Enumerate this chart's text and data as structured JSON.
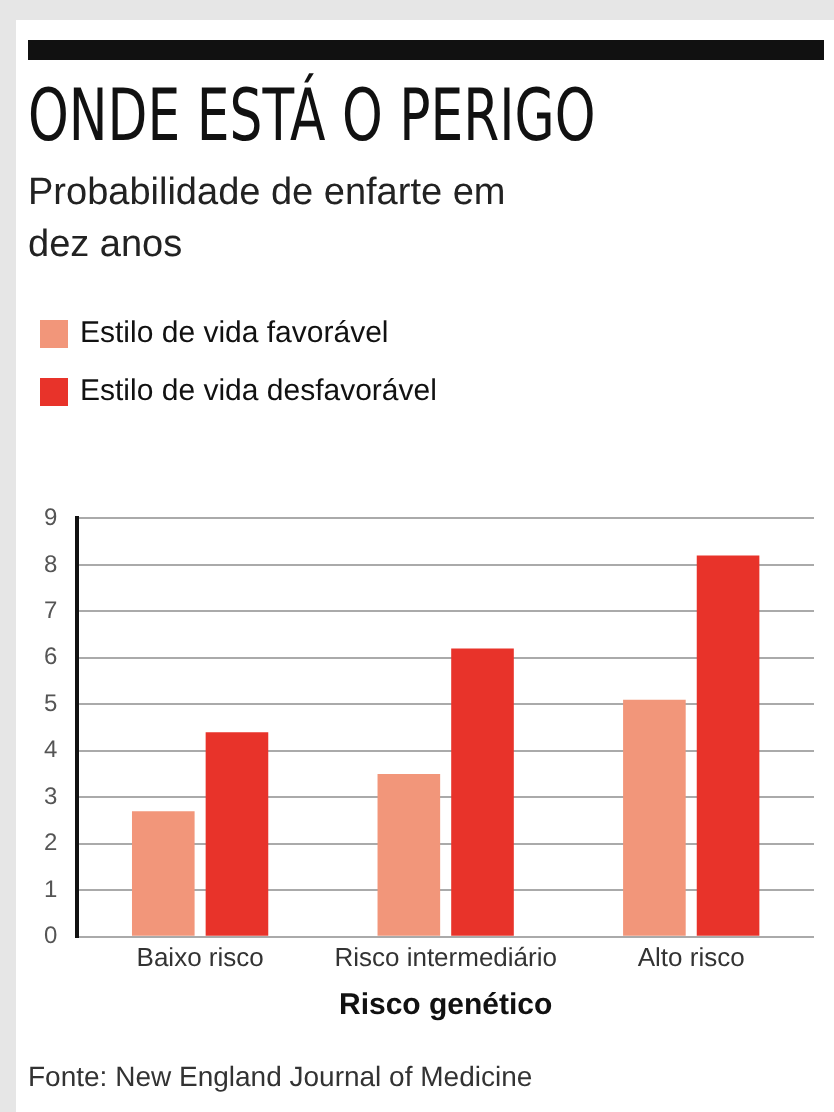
{
  "chart_data": {
    "type": "bar",
    "title": "ONDE ESTÁ O PERIGO",
    "subtitle": "Probabilidade de enfarte em dez anos",
    "xlabel": "Risco genético",
    "categories": [
      "Baixo risco",
      "Risco intermediário",
      "Alto risco"
    ],
    "series": [
      {
        "name": "Estilo de vida favorável",
        "color": "#f2967a",
        "values": [
          2.7,
          3.5,
          5.1
        ]
      },
      {
        "name": "Estilo de vida desfavorável",
        "color": "#e8332a",
        "values": [
          4.4,
          6.2,
          8.2
        ]
      }
    ],
    "ylim": [
      0,
      9
    ],
    "yticks": [
      0,
      1,
      2,
      3,
      4,
      5,
      6,
      7,
      8,
      9
    ],
    "grid": "y",
    "legend": "top left",
    "annotations": [
      "Fonte: New England Journal of Medicine"
    ]
  }
}
